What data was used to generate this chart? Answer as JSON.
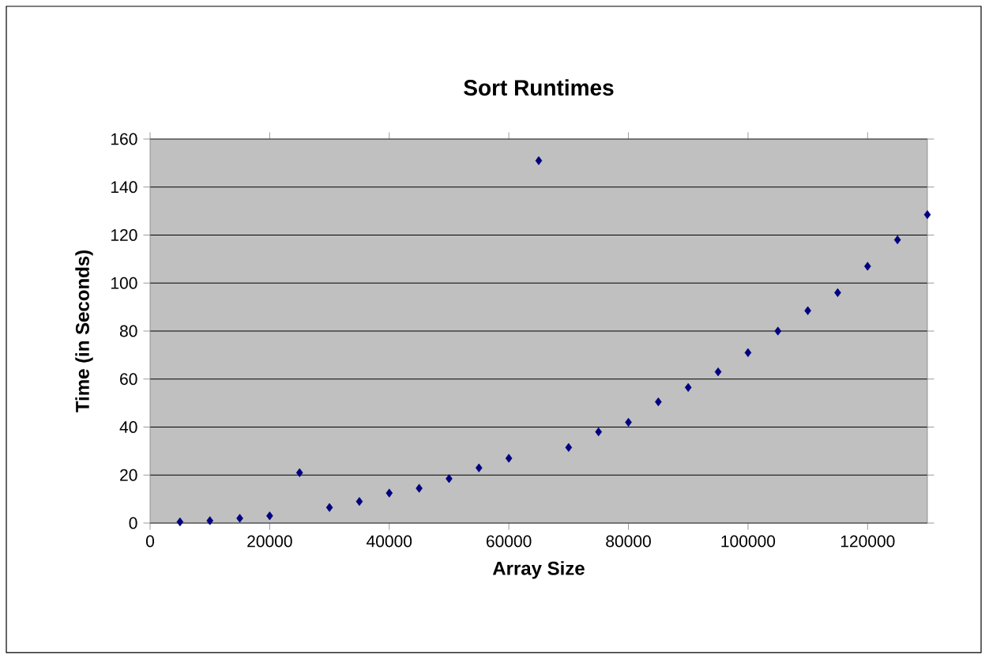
{
  "chart_data": {
    "type": "scatter",
    "title": "Sort Runtimes",
    "xlabel": "Array Size",
    "ylabel": "Time (in Seconds)",
    "x": [
      5000,
      10000,
      15000,
      20000,
      25000,
      30000,
      35000,
      40000,
      45000,
      50000,
      55000,
      60000,
      65000,
      70000,
      75000,
      80000,
      85000,
      90000,
      95000,
      100000,
      105000,
      110000,
      115000,
      120000,
      125000,
      130000
    ],
    "values": [
      0.5,
      1,
      2,
      3,
      21,
      6.5,
      9,
      12.5,
      14.5,
      18.5,
      23,
      27,
      151,
      31.5,
      38,
      42,
      50.5,
      56.5,
      63,
      71,
      80,
      88.5,
      96,
      107,
      118,
      128.5
    ],
    "color": "#000080",
    "marker": "diamond",
    "xlim": [
      0,
      130000
    ],
    "xticks": [
      0,
      20000,
      40000,
      60000,
      80000,
      100000,
      120000
    ],
    "ylim": [
      0,
      160
    ],
    "yticks": [
      0,
      20,
      40,
      60,
      80,
      100,
      120,
      140,
      160
    ],
    "grid": "y"
  }
}
